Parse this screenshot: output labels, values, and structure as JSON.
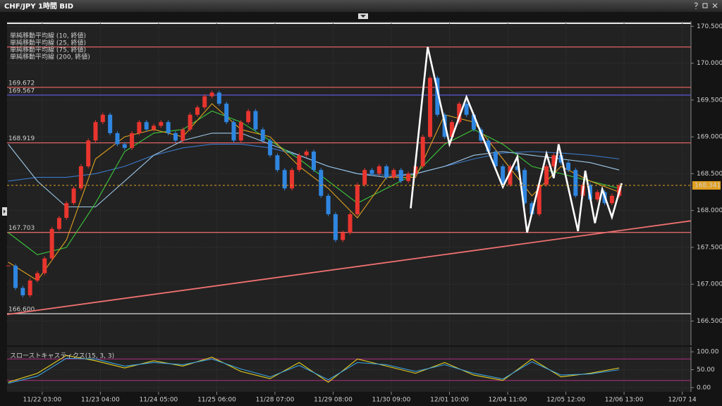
{
  "window": {
    "title": "CHF/JPY 1時間 BID"
  },
  "chart_data": [
    {
      "type": "candlestick",
      "x": [
        -14,
        -11,
        -8,
        -5,
        -2,
        1,
        4,
        7,
        10,
        13,
        16,
        19,
        22,
        25,
        28,
        31,
        34,
        37,
        40,
        43,
        46,
        49,
        52,
        55,
        58,
        61,
        64,
        67,
        70,
        73,
        76,
        79,
        82,
        85,
        88,
        91,
        94,
        97,
        100,
        103,
        106,
        109,
        112,
        115,
        118,
        121,
        124,
        127,
        130,
        133,
        136,
        139,
        142,
        145,
        148,
        151,
        154,
        157,
        160,
        163,
        166,
        169,
        172,
        175,
        178,
        181,
        184,
        187,
        190,
        193,
        196,
        199,
        202,
        205,
        208,
        211,
        214,
        217,
        220,
        223,
        226,
        229,
        232,
        235,
        238
      ],
      "close": [
        167.25,
        166.95,
        166.85,
        167.05,
        167.15,
        167.35,
        167.75,
        167.9,
        168.1,
        168.3,
        168.6,
        168.95,
        169.2,
        169.3,
        169.05,
        168.9,
        168.85,
        169.05,
        169.2,
        169.1,
        169.15,
        169.2,
        169.05,
        168.95,
        169.1,
        169.3,
        169.4,
        169.55,
        169.6,
        169.45,
        169.2,
        168.95,
        169.2,
        169.35,
        169.1,
        168.95,
        168.75,
        168.55,
        168.3,
        168.55,
        168.75,
        168.8,
        168.55,
        168.2,
        167.95,
        167.6,
        167.7,
        167.95,
        168.35,
        168.55,
        168.5,
        168.6,
        168.45,
        168.55,
        168.4,
        168.5,
        168.6,
        169.0,
        169.8,
        169.3,
        169.0,
        169.2,
        169.45,
        169.3,
        169.1,
        168.95,
        168.8,
        168.6,
        168.35,
        168.6,
        168.55,
        168.1,
        167.95,
        168.35,
        168.6,
        168.75,
        168.65,
        168.55,
        168.2,
        168.35,
        168.15,
        168.25,
        168.1,
        168.2,
        168.34
      ],
      "up_color": "#e8352e",
      "down_color": "#2f86e0",
      "series": [
        {
          "name": "単純移動平均線 (10, 終値)",
          "color": "#e0a020",
          "x": [
            -14,
            -2,
            10,
            22,
            34,
            46,
            58,
            70,
            82,
            94,
            106,
            118,
            130,
            142,
            154,
            166,
            178,
            190,
            202,
            214,
            226,
            238
          ],
          "values": [
            167.3,
            167.05,
            167.6,
            168.7,
            169.0,
            169.1,
            169.0,
            169.45,
            169.1,
            169.0,
            168.6,
            168.3,
            167.9,
            168.45,
            168.45,
            169.3,
            169.2,
            168.7,
            168.2,
            168.6,
            168.4,
            168.25
          ]
        },
        {
          "name": "単純移動平均線 (25, 終値)",
          "color": "#3cc83c",
          "x": [
            -14,
            -2,
            10,
            22,
            34,
            46,
            58,
            70,
            82,
            94,
            106,
            118,
            130,
            142,
            154,
            166,
            178,
            190,
            202,
            214,
            226,
            238
          ],
          "values": [
            167.7,
            167.4,
            167.5,
            168.1,
            168.8,
            169.05,
            169.1,
            169.35,
            169.2,
            168.95,
            168.7,
            168.4,
            168.1,
            168.3,
            168.5,
            168.9,
            169.1,
            168.9,
            168.6,
            168.5,
            168.4,
            168.3
          ]
        },
        {
          "name": "単純移動平均線 (75, 終値)",
          "color": "#9ec8e8",
          "x": [
            -14,
            -2,
            10,
            22,
            34,
            46,
            58,
            70,
            82,
            94,
            106,
            118,
            130,
            142,
            154,
            166,
            178,
            190,
            202,
            214,
            226,
            238
          ],
          "values": [
            168.9,
            168.4,
            168.05,
            168.05,
            168.4,
            168.75,
            168.95,
            169.05,
            169.05,
            168.9,
            168.75,
            168.6,
            168.5,
            168.45,
            168.5,
            168.6,
            168.75,
            168.8,
            168.75,
            168.7,
            168.65,
            168.55
          ]
        },
        {
          "name": "単純移動平均線 (200, 終値)",
          "color": "#3a78c8",
          "x": [
            -14,
            -2,
            10,
            22,
            34,
            46,
            58,
            70,
            82,
            94,
            106,
            118,
            130,
            142,
            154,
            166,
            178,
            190,
            202,
            214,
            226,
            238
          ],
          "values": [
            168.4,
            168.45,
            168.45,
            168.5,
            168.6,
            168.75,
            168.85,
            168.9,
            168.9,
            168.85,
            168.75,
            168.6,
            168.5,
            168.48,
            168.5,
            168.6,
            168.7,
            168.78,
            168.8,
            168.78,
            168.75,
            168.7
          ]
        }
      ],
      "levels": [
        {
          "value": 170.22,
          "color": "#e06060"
        },
        {
          "value": 169.672,
          "label": "169.672",
          "color": "#e06060"
        },
        {
          "value": 169.567,
          "label": "169.567",
          "color": "#5a5ad8"
        },
        {
          "value": 168.919,
          "label": "168.919",
          "color": "#e06060"
        },
        {
          "value": 167.703,
          "label": "167.703",
          "color": "#f07070"
        },
        {
          "value": 166.6,
          "label": "166.600",
          "color": "#c8c8c8"
        }
      ],
      "last": {
        "value": 168.341,
        "label": "168.341",
        "color": "#e0a020"
      },
      "trendline": {
        "x": [
          -14.5,
          267.6
        ],
        "values": [
          166.59,
          167.86
        ],
        "color": "#f07070"
      },
      "annotation_line": {
        "x": [
          152,
          159,
          168,
          175,
          190,
          196,
          200,
          208,
          211,
          213,
          221,
          224,
          228,
          231,
          235,
          239
        ],
        "values": [
          168.03,
          170.22,
          168.9,
          169.54,
          168.32,
          168.73,
          167.7,
          168.77,
          168.44,
          168.9,
          167.72,
          168.54,
          167.83,
          168.29,
          167.91,
          168.37
        ],
        "color": "#ffffff"
      },
      "xlim": [
        -14.5,
        267.6
      ],
      "ylim": [
        166.17,
        170.57
      ],
      "xticks": [
        {
          "value": 0,
          "label": "11/22 03:00"
        },
        {
          "value": 24,
          "label": "11/23 04:00"
        },
        {
          "value": 48,
          "label": "11/24 05:00"
        },
        {
          "value": 72,
          "label": "11/25 06:00"
        },
        {
          "value": 96,
          "label": "11/28 07:00"
        },
        {
          "value": 120,
          "label": "11/29 08:00"
        },
        {
          "value": 144,
          "label": "11/30 09:00"
        },
        {
          "value": 168,
          "label": "12/01 10:00"
        },
        {
          "value": 192,
          "label": "12/04 11:00"
        },
        {
          "value": 216,
          "label": "12/05 12:00"
        },
        {
          "value": 240,
          "label": "12/06 13:00"
        },
        {
          "value": 264,
          "label": "12/07 14"
        }
      ],
      "yticks": [
        {
          "value": 166.5,
          "label": "166.500"
        },
        {
          "value": 167,
          "label": "167.000"
        },
        {
          "value": 167.5,
          "label": "167.500"
        },
        {
          "value": 168,
          "label": "168.000"
        },
        {
          "value": 168.5,
          "label": "168.500"
        },
        {
          "value": 169,
          "label": "169.000"
        },
        {
          "value": 169.5,
          "label": "169.500"
        },
        {
          "value": 170,
          "label": "170.000"
        },
        {
          "value": 170.5,
          "label": "170.500"
        }
      ],
      "grid": true
    },
    {
      "type": "line",
      "title": "スローストキャスティクス(15, 3, 3)",
      "series": [
        {
          "color": "#e8d020",
          "x": [
            -14,
            -2,
            10,
            22,
            34,
            46,
            58,
            70,
            82,
            94,
            106,
            118,
            130,
            142,
            154,
            166,
            178,
            190,
            202,
            214,
            226,
            238
          ],
          "values": [
            15,
            40,
            90,
            75,
            55,
            75,
            60,
            85,
            45,
            25,
            70,
            15,
            80,
            60,
            40,
            70,
            35,
            20,
            80,
            30,
            40,
            55
          ]
        },
        {
          "color": "#3aa0e0",
          "x": [
            -14,
            -2,
            10,
            22,
            34,
            46,
            58,
            70,
            82,
            94,
            106,
            118,
            130,
            142,
            154,
            166,
            178,
            190,
            202,
            214,
            226,
            238
          ],
          "values": [
            12,
            32,
            82,
            80,
            60,
            70,
            64,
            80,
            52,
            30,
            62,
            22,
            70,
            64,
            45,
            64,
            40,
            24,
            72,
            35,
            38,
            50
          ]
        }
      ],
      "levels": [
        {
          "value": 80,
          "color": "#b03080"
        },
        {
          "value": 20,
          "color": "#b03080"
        }
      ],
      "xlim": [
        -14.5,
        267.6
      ],
      "ylim": [
        -12,
        114
      ],
      "yticks": [
        {
          "value": 0,
          "label": "0.00"
        },
        {
          "value": 50,
          "label": "50.00"
        },
        {
          "value": 100,
          "label": "100.00"
        }
      ],
      "grid": true
    }
  ]
}
